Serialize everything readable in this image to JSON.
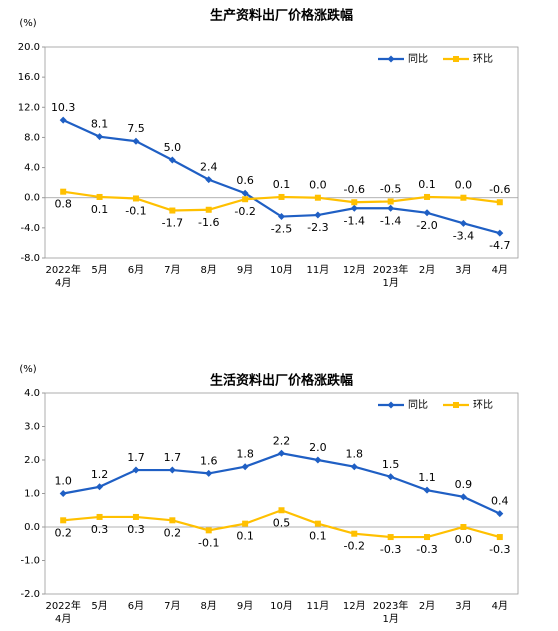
{
  "chart_data": [
    {
      "type": "line",
      "title": "生产资料出厂价格涨跌幅",
      "y_label": "(%)",
      "categories": [
        "2022年\n4月",
        "5月",
        "6月",
        "7月",
        "8月",
        "9月",
        "10月",
        "11月",
        "12月",
        "2023年\n1月",
        "2月",
        "3月",
        "4月"
      ],
      "series": [
        {
          "name": "同比",
          "color": "#1f5fc4",
          "marker": "diamond",
          "values": [
            10.3,
            8.1,
            7.5,
            5.0,
            2.4,
            0.6,
            -2.5,
            -2.3,
            -1.4,
            -1.4,
            -2.0,
            -3.4,
            -4.7
          ],
          "value_labels": [
            "10.3",
            "8.1",
            "7.5",
            "5.0",
            "2.4",
            "0.6",
            "-2.5",
            "-2.3",
            "-1.4",
            "-1.4",
            "-2.0",
            "-3.4",
            "-4.7"
          ]
        },
        {
          "name": "环比",
          "color": "#ffc000",
          "marker": "square",
          "values": [
            0.8,
            0.1,
            -0.1,
            -1.7,
            -1.6,
            -0.2,
            0.1,
            0.0,
            -0.6,
            -0.5,
            0.1,
            0.0,
            -0.6
          ],
          "value_labels": [
            "0.8",
            "0.1",
            "-0.1",
            "-1.7",
            "-1.6",
            "-0.2",
            "0.1",
            "0.0",
            "-0.6",
            "-0.5",
            "0.1",
            "0.0",
            "-0.6"
          ]
        }
      ],
      "ylim": [
        -8,
        20
      ],
      "yticks": [
        {
          "value": -8,
          "label": "-8.0"
        },
        {
          "value": -4,
          "label": "-4.0"
        },
        {
          "value": 0,
          "label": "0.0"
        },
        {
          "value": 4,
          "label": "4.0"
        },
        {
          "value": 8,
          "label": "8.0"
        },
        {
          "value": 12,
          "label": "12.0"
        },
        {
          "value": 16,
          "label": "16.0"
        },
        {
          "value": 20,
          "label": "20.0"
        }
      ],
      "legend": "upper right"
    },
    {
      "type": "line",
      "title": "生活资料出厂价格涨跌幅",
      "y_label": "(%)",
      "categories": [
        "2022年\n4月",
        "5月",
        "6月",
        "7月",
        "8月",
        "9月",
        "10月",
        "11月",
        "12月",
        "2023年\n1月",
        "2月",
        "3月",
        "4月"
      ],
      "series": [
        {
          "name": "同比",
          "color": "#1f5fc4",
          "marker": "diamond",
          "values": [
            1.0,
            1.2,
            1.7,
            1.7,
            1.6,
            1.8,
            2.2,
            2.0,
            1.8,
            1.5,
            1.1,
            0.9,
            0.4
          ],
          "value_labels": [
            "1.0",
            "1.2",
            "1.7",
            "1.7",
            "1.6",
            "1.8",
            "2.2",
            "2.0",
            "1.8",
            "1.5",
            "1.1",
            "0.9",
            "0.4"
          ]
        },
        {
          "name": "环比",
          "color": "#ffc000",
          "marker": "square",
          "values": [
            0.2,
            0.3,
            0.3,
            0.2,
            -0.1,
            0.1,
            0.5,
            0.1,
            -0.2,
            -0.3,
            -0.3,
            0.0,
            -0.3
          ],
          "value_labels": [
            "0.2",
            "0.3",
            "0.3",
            "0.2",
            "-0.1",
            "0.1",
            "0.5",
            "0.1",
            "-0.2",
            "-0.3",
            "-0.3",
            "0.0",
            "-0.3"
          ]
        }
      ],
      "ylim": [
        -2,
        4
      ],
      "yticks": [
        {
          "value": -2,
          "label": "-2.0"
        },
        {
          "value": -1,
          "label": "-1.0"
        },
        {
          "value": 0,
          "label": "0.0"
        },
        {
          "value": 1,
          "label": "1.0"
        },
        {
          "value": 2,
          "label": "2.0"
        },
        {
          "value": 3,
          "label": "3.0"
        },
        {
          "value": 4,
          "label": "4.0"
        }
      ],
      "legend": "upper right"
    }
  ]
}
